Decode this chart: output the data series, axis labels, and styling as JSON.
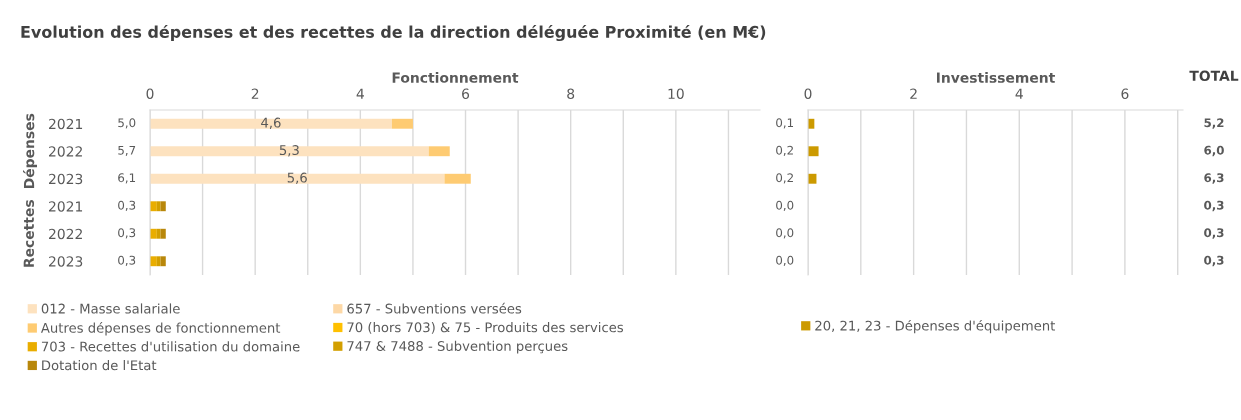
{
  "chart_data": [
    {
      "type": "bar",
      "orientation": "horizontal",
      "stacked": true,
      "title": "Evolution des dépenses et des recettes de la direction déléguée Proximité (en M€)",
      "xlabel": "Fonctionnement",
      "categories": [
        "2021",
        "2022",
        "2023",
        "2021",
        "2022",
        "2023"
      ],
      "annotations": [
        "Dépenses",
        "Recettes"
      ],
      "xlim": [
        0,
        11.6
      ],
      "xticks": [
        0,
        {
          "value": 1,
          "label": null
        },
        2,
        {
          "value": 3,
          "label": null
        },
        4,
        {
          "value": 5,
          "label": null
        },
        6,
        {
          "value": 7,
          "label": null
        },
        8,
        {
          "value": 9,
          "label": null
        },
        10,
        {
          "value": 11,
          "label": null
        }
      ],
      "grid": "x",
      "legend": "bottom",
      "totals": [
        "5,0",
        "5,7",
        "6,1",
        "0,3",
        "0,3",
        "0,3"
      ],
      "series": [
        {
          "name": "012 - Masse salariale",
          "color": "#fde2bf",
          "values": [
            4.6,
            5.3,
            5.6,
            null,
            null,
            null
          ],
          "value_labels": [
            "4,6",
            "5,3",
            "5,6",
            null,
            null,
            null
          ]
        },
        {
          "name": "657 - Subventions versées",
          "color": "#fdd8a6",
          "values": [
            null,
            null,
            null,
            null,
            null,
            null
          ]
        },
        {
          "name": "Autres dépenses de fonctionnement",
          "color": "#fecb72",
          "values": [
            0.4,
            0.4,
            0.5,
            null,
            null,
            null
          ]
        },
        {
          "name": "70 (hors 703) & 75 - Produits des services",
          "color": "#ffc000",
          "values": [
            null,
            null,
            null,
            null,
            null,
            null
          ]
        },
        {
          "name": "703 - Recettes d'utilisation du domaine",
          "color": "#e9ad00",
          "values": [
            null,
            null,
            null,
            0.13,
            0.13,
            0.13
          ]
        },
        {
          "name": "747 & 7488 - Subvention perçues",
          "color": "#d39f00",
          "values": [
            null,
            null,
            null,
            0.07,
            0.07,
            0.07
          ]
        },
        {
          "name": "Dotation de l'Etat",
          "color": "#b8870b",
          "values": [
            null,
            null,
            null,
            0.1,
            0.1,
            0.1
          ]
        }
      ]
    },
    {
      "type": "bar",
      "orientation": "horizontal",
      "stacked": true,
      "xlabel": "Investissement",
      "categories": [
        "2021",
        "2022",
        "2023",
        "2021",
        "2022",
        "2023"
      ],
      "tick_labels": "x",
      "xlim": [
        0,
        7.1
      ],
      "xticks": [
        0,
        {
          "value": 1,
          "label": null
        },
        2,
        {
          "value": 3,
          "label": null
        },
        4,
        {
          "value": 5,
          "label": null
        },
        6,
        {
          "value": 7,
          "label": null
        }
      ],
      "grid": "x",
      "legend": "bottom",
      "totals": [
        "0,1",
        "0,2",
        "0,2",
        "0,0",
        "0,0",
        "0,0"
      ],
      "series": [
        {
          "name": "20, 21, 23 - Dépenses d'équipement",
          "color": "#cc9a00",
          "values": [
            0.12,
            0.2,
            0.16,
            null,
            null,
            null
          ]
        }
      ]
    },
    {
      "type": "other",
      "title": "TOTAL",
      "annotations": [
        "5,2",
        "6,0",
        "6,3",
        "0,3",
        "0,3",
        "0,3"
      ]
    }
  ]
}
